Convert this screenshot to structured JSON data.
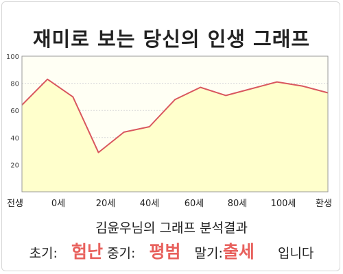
{
  "title": "재미로 보는 당신의 인생 그래프",
  "chart_data": {
    "type": "area",
    "x_tick_labels": [
      "전생",
      "0세",
      "20세",
      "40세",
      "60세",
      "80세",
      "100세",
      "환생"
    ],
    "y_ticks": [
      20,
      40,
      60,
      80,
      100
    ],
    "ylim": [
      0,
      100
    ],
    "grid": true,
    "series": [
      {
        "values": [
          64,
          83,
          70,
          29,
          44,
          48,
          68,
          77,
          71,
          76,
          81,
          78,
          73
        ]
      }
    ],
    "line_color": "#d9575e",
    "fill_color": "#ffffcc"
  },
  "summary": {
    "title": "김윤우님의 그래프 분석결과",
    "early_label": "초기:",
    "early_value": "험난",
    "mid_label": "중기:",
    "mid_value": "평범",
    "late_label": "말기:",
    "late_value": "출세",
    "suffix": "입니다"
  }
}
